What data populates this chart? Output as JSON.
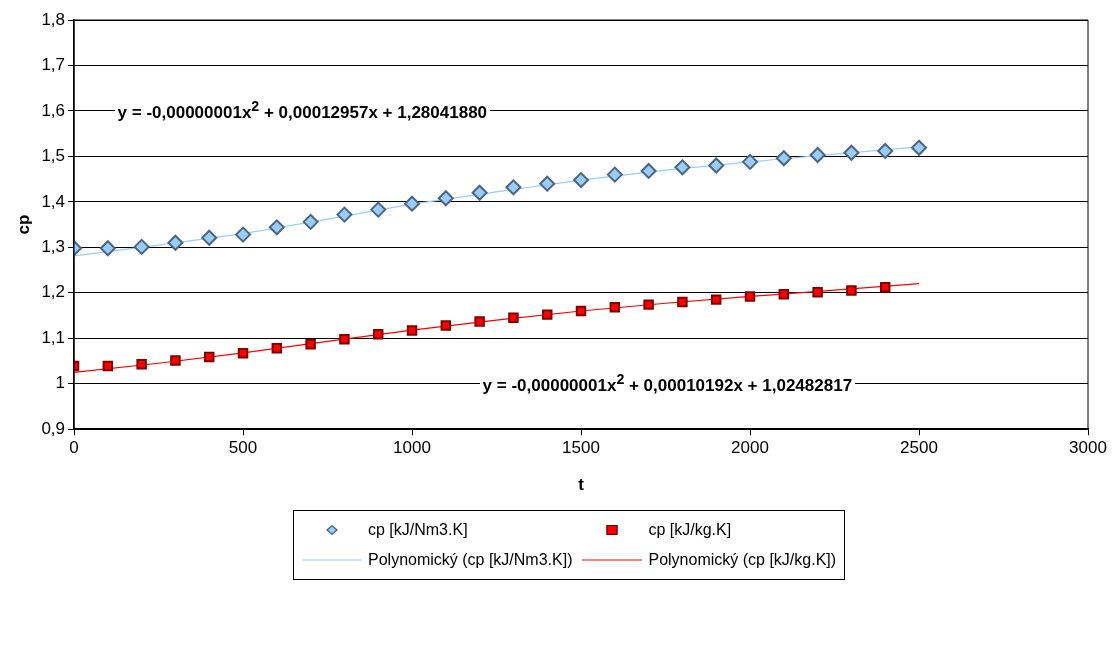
{
  "chart_data": {
    "type": "scatter",
    "xlabel": "t",
    "ylabel": "cp",
    "annotations": [
      "y = -0,00000001x$^{2}$ + 0,00012957x + 1,28041880",
      "y = -0,00000001x$^{2}$ + 0,00010192x + 1,02482817"
    ],
    "series": [
      {
        "name": "cp [kJ/Nm3.K]",
        "marker": "diamond",
        "color": "#99ccff",
        "x": [
          0,
          100,
          200,
          300,
          400,
          500,
          600,
          700,
          800,
          900,
          1000,
          1100,
          1200,
          1300,
          1400,
          1500,
          1600,
          1700,
          1800,
          1900,
          2000,
          2100,
          2200,
          2300,
          2400,
          2500
        ],
        "values": [
          1.298,
          1.298,
          1.301,
          1.31,
          1.321,
          1.328,
          1.344,
          1.356,
          1.372,
          1.383,
          1.396,
          1.408,
          1.42,
          1.432,
          1.44,
          1.448,
          1.46,
          1.468,
          1.476,
          1.48,
          1.488,
          1.496,
          1.503,
          1.508,
          1.512,
          1.519
        ]
      },
      {
        "name": "cp [kJ/kg.K]",
        "marker": "square",
        "color": "#ff0000",
        "x": [
          0,
          100,
          200,
          300,
          400,
          500,
          600,
          700,
          800,
          900,
          1000,
          1100,
          1200,
          1300,
          1400,
          1500,
          1600,
          1700,
          1800,
          1900,
          2000,
          2100,
          2200,
          2300,
          2400
        ],
        "values": [
          1.039,
          1.039,
          1.043,
          1.051,
          1.059,
          1.067,
          1.078,
          1.087,
          1.098,
          1.109,
          1.117,
          1.128,
          1.137,
          1.145,
          1.152,
          1.16,
          1.168,
          1.174,
          1.18,
          1.185,
          1.192,
          1.197,
          1.201,
          1.205,
          1.212
        ]
      },
      {
        "name": "Polynomický (cp [kJ/Nm3.K])",
        "type": "line",
        "marker": "none",
        "color": "#99ccff",
        "x": [
          0,
          250,
          500,
          750,
          1000,
          1250,
          1500,
          1750,
          2000,
          2250,
          2500
        ],
        "values": [
          1.281,
          1.305,
          1.33,
          1.362,
          1.395,
          1.422,
          1.448,
          1.47,
          1.488,
          1.505,
          1.521
        ]
      },
      {
        "name": "Polynomický (cp [kJ/kg.K])",
        "type": "line",
        "marker": "none",
        "color": "#ff0000",
        "x": [
          0,
          250,
          500,
          750,
          1000,
          1250,
          1500,
          1750,
          2000,
          2250,
          2500
        ],
        "values": [
          1.025,
          1.045,
          1.068,
          1.093,
          1.118,
          1.14,
          1.16,
          1.177,
          1.192,
          1.206,
          1.22
        ]
      }
    ],
    "xlim": [
      0,
      3000
    ],
    "xticks": [
      0,
      500,
      1000,
      1500,
      2000,
      2500,
      3000
    ],
    "ylim": [
      0.9,
      1.8
    ],
    "yticks": [
      {
        "value": 0.9,
        "label": "0,9"
      },
      1,
      {
        "value": 1.1,
        "label": "1,1"
      },
      {
        "value": 1.2,
        "label": "1,2"
      },
      {
        "value": 1.3,
        "label": "1,3"
      },
      {
        "value": 1.4,
        "label": "1,4"
      },
      {
        "value": 1.5,
        "label": "1,5"
      },
      {
        "value": 1.6,
        "label": "1,6"
      },
      {
        "value": 1.7,
        "label": "1,7"
      },
      {
        "value": 1.8,
        "label": "1,8"
      }
    ],
    "grid": "y",
    "legend": "bottom"
  }
}
